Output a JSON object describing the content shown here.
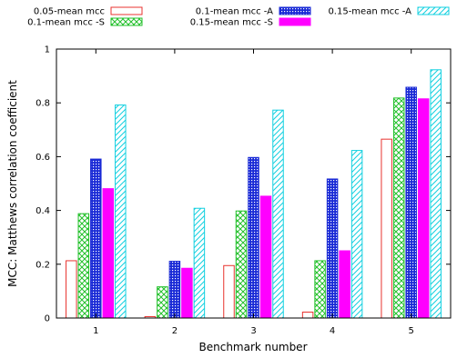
{
  "chart_data": {
    "type": "bar",
    "xlabel": "Benchmark number",
    "ylabel": "MCC: Matthews correlation coefficient",
    "ylim": [
      0,
      1
    ],
    "yticks": [
      "0",
      "0.2",
      "0.4",
      "0.6",
      "0.8",
      "1"
    ],
    "grid": false,
    "legend_position": "top",
    "categories": [
      "1",
      "2",
      "3",
      "4",
      "5"
    ],
    "series": [
      {
        "name": "0.05-mean mcc",
        "color": "#e8332f",
        "pattern": "hollow",
        "values": [
          0.213,
          0.005,
          0.195,
          0.022,
          0.665
        ]
      },
      {
        "name": "0.1-mean mcc -S",
        "color": "#22c02a",
        "pattern": "crosshatch",
        "values": [
          0.388,
          0.116,
          0.398,
          0.213,
          0.818
        ]
      },
      {
        "name": "0.1-mean mcc -A",
        "color": "#1a2bd6",
        "pattern": "dense-grid",
        "values": [
          0.591,
          0.211,
          0.597,
          0.517,
          0.858
        ]
      },
      {
        "name": "0.15-mean mcc -S",
        "color": "#ff00ff",
        "pattern": "solid",
        "values": [
          0.481,
          0.185,
          0.453,
          0.25,
          0.815
        ]
      },
      {
        "name": "0.15-mean mcc -A",
        "color": "#12d0e0",
        "pattern": "diagonal",
        "values": [
          0.792,
          0.408,
          0.773,
          0.623,
          0.923
        ]
      }
    ]
  }
}
